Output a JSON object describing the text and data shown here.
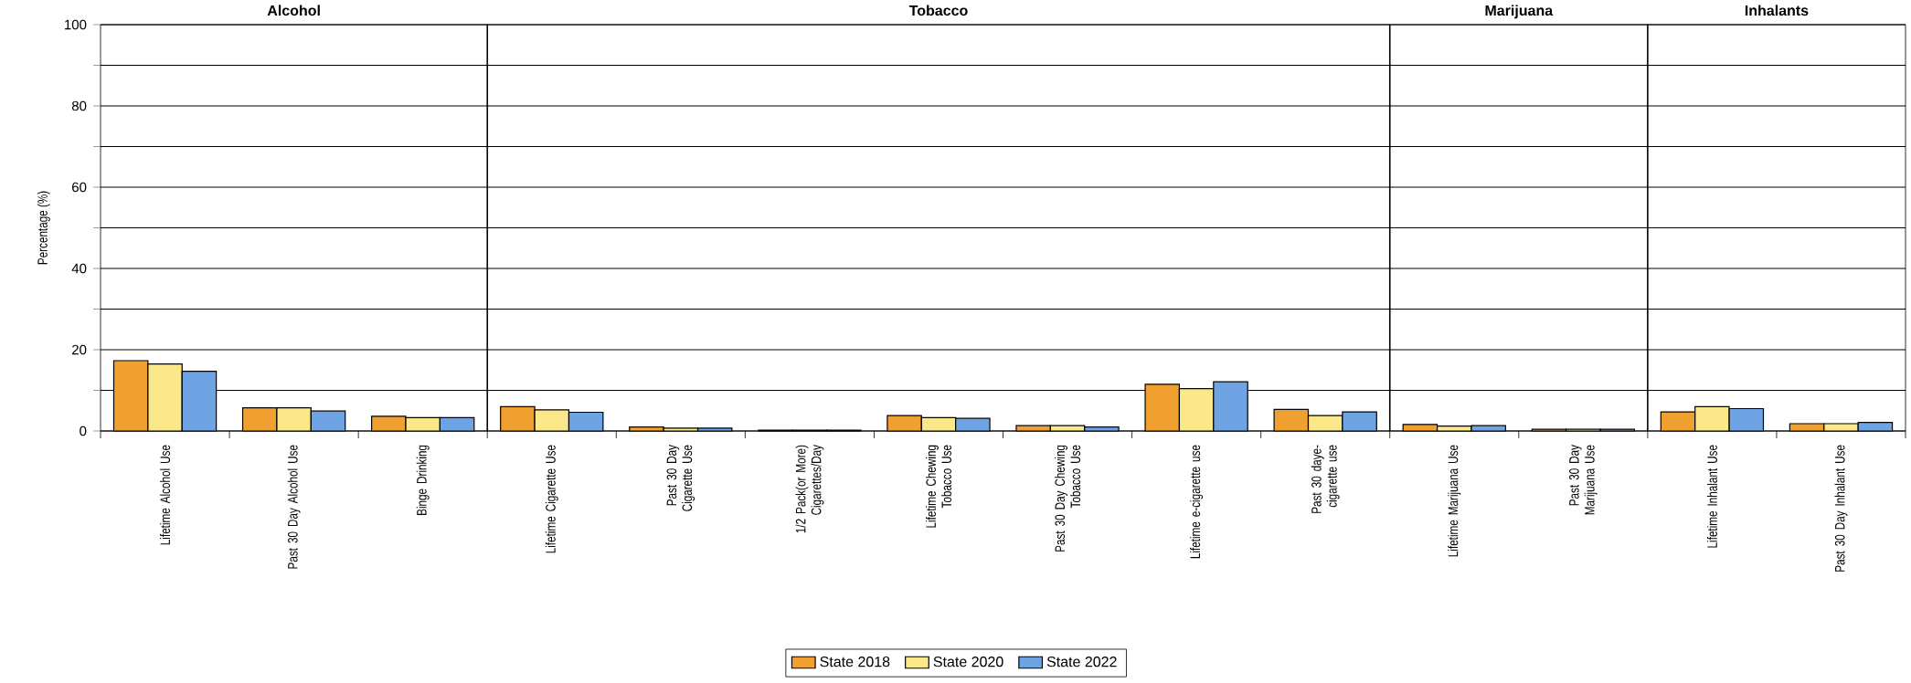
{
  "chart_data": {
    "type": "bar",
    "ylabel": "Percentage (%)",
    "categories": [
      "Lifetime Alcohol Use",
      "Past 30 Day Alcohol Use",
      "Binge Drinking",
      "Lifetime Cigarette Use",
      "Past 30 Day Cigarette Use",
      "1/2 Pack(or More) Cigarettes/Day",
      "Lifetime Chewing Tobacco Use",
      "Past 30 Day Chewing Tobacco Use",
      "Lifetime e-cigarette use",
      "Past 30 daye-cigarette use",
      "Lifetime Marijuana Use",
      "Past 30 Day Marijuana Use",
      "Lifetime Inhalant Use",
      "Past 30 Day Inhalant Use"
    ],
    "series": [
      {
        "name": "State 2018",
        "color": "#f0a030",
        "values": [
          17.3,
          5.7,
          3.6,
          6.0,
          1.0,
          0.2,
          3.8,
          1.3,
          11.5,
          5.3,
          1.6,
          0.4,
          4.7,
          1.8
        ]
      },
      {
        "name": "State 2020",
        "color": "#fbe88a",
        "values": [
          16.5,
          5.7,
          3.3,
          5.2,
          0.7,
          0.2,
          3.3,
          1.3,
          10.4,
          3.8,
          1.2,
          0.4,
          6.0,
          1.8
        ]
      },
      {
        "name": "State 2022",
        "color": "#6fa4e4",
        "values": [
          14.7,
          4.9,
          3.3,
          4.6,
          0.7,
          0.2,
          3.1,
          1.0,
          12.1,
          4.7,
          1.3,
          0.4,
          5.5,
          2.1
        ]
      }
    ],
    "annotations": [
      "Alcohol",
      "Tobacco",
      "Marijuana",
      "Inhalants"
    ],
    "ylim": [
      0,
      100
    ],
    "yticks": [
      0,
      {
        "value": 10,
        "label": null
      },
      20,
      {
        "value": 30,
        "label": null
      },
      40,
      {
        "value": 50,
        "label": null
      },
      60,
      {
        "value": 70,
        "label": null
      },
      80,
      {
        "value": 90,
        "label": null
      },
      100
    ],
    "grid": "y",
    "legend": "bottom"
  }
}
